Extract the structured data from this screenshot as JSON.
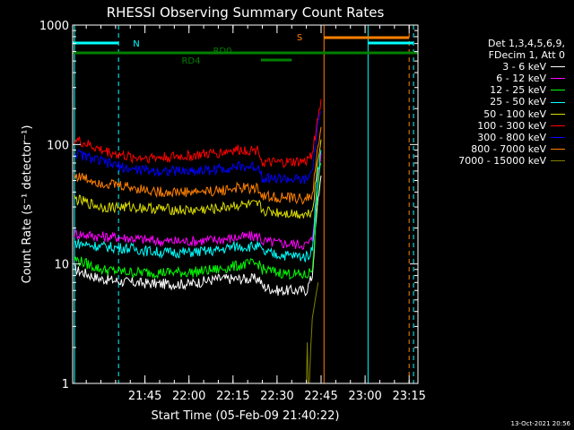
{
  "chart_data": {
    "type": "line",
    "title": "RHESSI Observing Summary Count Rates",
    "xlabel": "Start Time (05-Feb-09 21:40:22)",
    "ylabel": "Count Rate (s⁻¹ detector⁻¹)",
    "y_scale": "log",
    "ylim": [
      1,
      1000
    ],
    "xlim": [
      "21:40:22",
      "23:18:00"
    ],
    "y_ticks": [
      "1",
      "10",
      "100",
      "1000"
    ],
    "x_ticks": [
      "21:45",
      "22:00",
      "22:15",
      "22:30",
      "22:45",
      "23:00",
      "23:15"
    ],
    "x_tick_minutes": [
      285,
      300,
      315,
      330,
      345,
      360,
      375
    ],
    "x_start_minutes": 260.37,
    "x_end_minutes": 378,
    "legend_header": [
      "Det 1,3,4,5,6,9,",
      "FDecim 1, Att 0"
    ],
    "series": [
      {
        "name": "3 - 6 keV",
        "color": "#ffffff",
        "x": [
          261,
          270,
          280,
          290,
          300,
          310,
          315,
          320,
          324,
          325,
          330,
          340,
          342,
          343,
          344,
          345
        ],
        "y": [
          9,
          7.5,
          7,
          6.8,
          6.8,
          7.5,
          7.5,
          7.5,
          7.5,
          6.5,
          6,
          6,
          8,
          18,
          35,
          55
        ]
      },
      {
        "name": "6 - 12 keV",
        "color": "#ff00ff",
        "x": [
          261,
          270,
          280,
          290,
          300,
          310,
          315,
          320,
          324,
          325,
          330,
          340,
          342,
          343,
          344,
          345
        ],
        "y": [
          18,
          17,
          16.5,
          15.5,
          15.5,
          16,
          16.5,
          17,
          17,
          15.5,
          15,
          14.5,
          16,
          30,
          55,
          85
        ]
      },
      {
        "name": "12 - 25 keV",
        "color": "#00ff00",
        "x": [
          261,
          270,
          280,
          290,
          300,
          310,
          315,
          320,
          324,
          325,
          330,
          340,
          342,
          343,
          344,
          345
        ],
        "y": [
          11,
          9,
          8.5,
          8.5,
          8.5,
          9,
          9.5,
          10,
          10,
          9,
          8.5,
          8,
          9,
          20,
          45,
          70
        ]
      },
      {
        "name": "25 - 50 keV",
        "color": "#00ffff",
        "x": [
          261,
          270,
          280,
          290,
          300,
          310,
          315,
          320,
          324,
          325,
          330,
          340,
          342,
          343,
          344,
          345
        ],
        "y": [
          15,
          14,
          13.5,
          12.5,
          12.5,
          13,
          14,
          14,
          14,
          12.5,
          12,
          11.5,
          13,
          30,
          60,
          90
        ]
      },
      {
        "name": "50 - 100 keV",
        "color": "#dddd00",
        "x": [
          261,
          270,
          280,
          290,
          300,
          310,
          315,
          320,
          324,
          325,
          330,
          340,
          342,
          343,
          344,
          345
        ],
        "y": [
          35,
          30,
          30,
          29,
          28,
          29,
          31,
          31,
          31,
          28,
          27,
          26,
          28,
          45,
          75,
          110
        ]
      },
      {
        "name": "100 - 300 keV",
        "color": "#ff0000",
        "x": [
          261,
          270,
          280,
          290,
          300,
          310,
          315,
          320,
          324,
          325,
          330,
          340,
          342,
          343,
          344,
          345
        ],
        "y": [
          110,
          90,
          78,
          78,
          80,
          85,
          90,
          90,
          90,
          70,
          70,
          72,
          85,
          120,
          170,
          240
        ]
      },
      {
        "name": "300 - 800 keV",
        "color": "#0000ff",
        "x": [
          261,
          270,
          280,
          290,
          300,
          310,
          315,
          320,
          324,
          325,
          330,
          340,
          342,
          343,
          344,
          345
        ],
        "y": [
          85,
          72,
          62,
          60,
          60,
          62,
          65,
          65,
          65,
          53,
          52,
          50,
          60,
          95,
          140,
          190
        ]
      },
      {
        "name": "800 - 7000 keV",
        "color": "#ff8000",
        "x": [
          261,
          270,
          280,
          290,
          300,
          310,
          315,
          320,
          324,
          325,
          330,
          340,
          342,
          343,
          344,
          345
        ],
        "y": [
          55,
          48,
          44,
          40,
          40,
          41,
          43,
          43,
          43,
          37,
          36,
          35,
          38,
          60,
          95,
          140
        ]
      },
      {
        "name": "7000 - 15000 keV",
        "color": "#808000",
        "x": [
          329,
          340,
          340.3,
          340.6,
          341,
          341.5,
          342,
          343,
          344
        ],
        "y": [
          1,
          1,
          2.2,
          1,
          1,
          2,
          3.5,
          5,
          7
        ]
      }
    ],
    "flags": {
      "night": {
        "label": "N",
        "color": "#00ffff",
        "x_start": 260.37,
        "x_end": 276
      },
      "night2": {
        "label": "",
        "color": "#00ffff",
        "x_start": 361,
        "x_end": 376.5
      },
      "saa": {
        "label": "S",
        "color": "#ff8000",
        "x_start": 346,
        "x_end": 375
      },
      "rd0": {
        "label": "RD0",
        "color": "#008000",
        "x_start": 260.37,
        "x_end": 378
      },
      "rd4": {
        "label": "RD4",
        "color": "#008000",
        "x_start": 324.5,
        "x_end": 335
      }
    },
    "vlines": [
      {
        "x": 261,
        "color": "#00ffff",
        "dash": false
      },
      {
        "x": 276,
        "color": "#00ffff",
        "dash": true
      },
      {
        "x": 346,
        "color": "#ff8000",
        "dash": false
      },
      {
        "x": 361,
        "color": "#00ffff",
        "dash": false
      },
      {
        "x": 375,
        "color": "#ff8000",
        "dash": true
      },
      {
        "x": 376.5,
        "color": "#00ffff",
        "dash": true
      }
    ]
  },
  "timestamp": "13-Oct-2021 20:56"
}
